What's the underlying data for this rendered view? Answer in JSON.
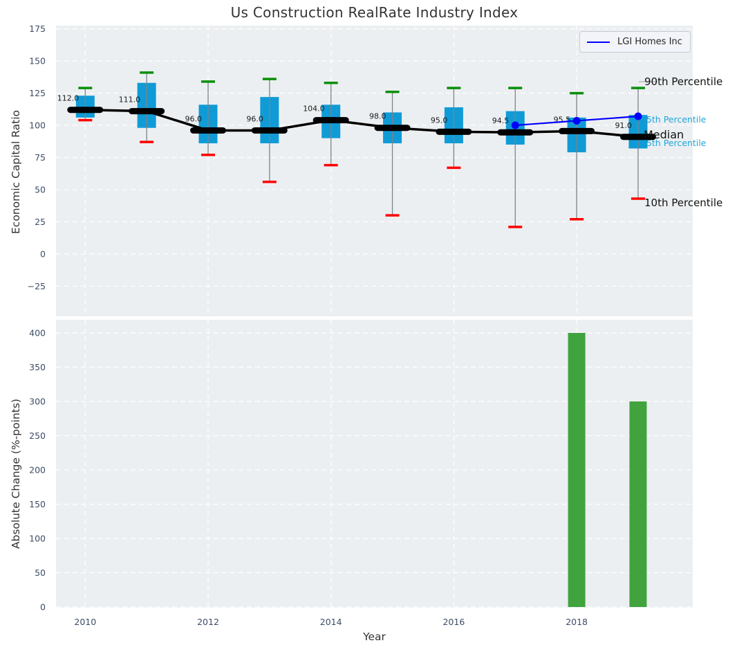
{
  "title": "Us Construction RealRate Industry Index",
  "colors": {
    "axes_bg": "#eceff1",
    "grid": "#ffffff",
    "box_fill": "#109bd6",
    "whisker": "#79848c",
    "cap_high": "#0a8f0a",
    "cap_low": "#ff0000",
    "median_line": "#000000",
    "bar_fill": "#40a33e",
    "tick_label": "#3c4c66",
    "axis_label": "#333333",
    "annotation_dark": "#111111",
    "annotation_cyan": "#1fa5dc",
    "lgi_line": "#0000ff"
  },
  "chart_data": [
    {
      "type": "boxplot",
      "title": "Us Construction RealRate Industry Index",
      "ylabel": "Economic Capital Ratio",
      "x": [
        2010,
        2011,
        2012,
        2013,
        2014,
        2015,
        2016,
        2017,
        2018,
        2019
      ],
      "percentiles": {
        "p90": [
          129,
          141,
          134,
          136,
          133,
          126,
          129,
          129,
          125,
          129
        ],
        "q3": [
          123,
          133,
          116,
          122,
          116,
          110,
          114,
          111,
          106,
          108
        ],
        "median": [
          112.0,
          111.0,
          96.0,
          96.0,
          104.0,
          98.0,
          95.0,
          94.5,
          95.5,
          91.0
        ],
        "q1": [
          106,
          98,
          86,
          86,
          90,
          86,
          86,
          85,
          79,
          82
        ],
        "p10": [
          104,
          87,
          77,
          56,
          69,
          30,
          67,
          21,
          27,
          43
        ]
      },
      "median_labels": [
        "112.0",
        "111.0",
        "96.0",
        "96.0",
        "104.0",
        "98.0",
        "95.0",
        "94.5",
        "95.5",
        "91.0"
      ],
      "series": [
        {
          "name": "LGI Homes Inc",
          "x": [
            2017,
            2018,
            2019
          ],
          "y": [
            100.0,
            103.5,
            107.0
          ],
          "color": "#0000ff"
        }
      ],
      "right_labels": {
        "p90": "90th Percentile",
        "p75": "75th Percentile",
        "median": "Median",
        "p25": "25th Percentile",
        "p10": "10th Percentile"
      },
      "yticks": [
        175,
        150,
        125,
        100,
        75,
        50,
        25,
        0,
        -25
      ],
      "ylim": [
        -48.5,
        177.5
      ],
      "xticks": [
        2010,
        2012,
        2014,
        2016,
        2018
      ],
      "xlim": [
        2009.52,
        2019.89
      ],
      "grid": true,
      "legend_position": "upper right"
    },
    {
      "type": "bar",
      "ylabel": "Absolute Change (%-points)",
      "xlabel": "Year",
      "x": [
        2018,
        2019
      ],
      "values": [
        400,
        300
      ],
      "yticks": [
        400,
        350,
        300,
        250,
        200,
        150,
        100,
        50,
        0
      ],
      "ylim": [
        0,
        419
      ],
      "xticks": [
        2010,
        2012,
        2014,
        2016,
        2018
      ],
      "xtick_labels": [
        "2010",
        "2012",
        "2014",
        "2016",
        "2018"
      ],
      "xlim": [
        2009.52,
        2019.89
      ],
      "grid": true
    }
  ]
}
